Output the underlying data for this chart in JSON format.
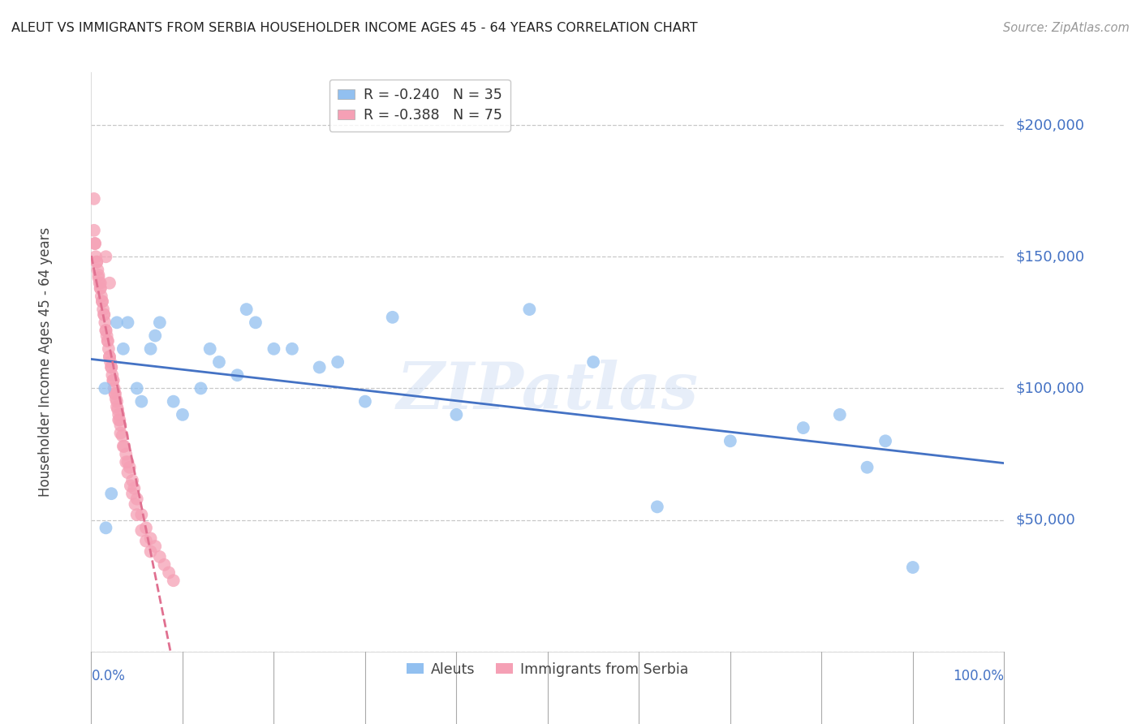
{
  "title": "ALEUT VS IMMIGRANTS FROM SERBIA HOUSEHOLDER INCOME AGES 45 - 64 YEARS CORRELATION CHART",
  "source": "Source: ZipAtlas.com",
  "ylabel": "Householder Income Ages 45 - 64 years",
  "xlim": [
    0.0,
    1.0
  ],
  "ylim": [
    0,
    220000
  ],
  "legend_blue_r": "-0.240",
  "legend_blue_n": "35",
  "legend_pink_r": "-0.388",
  "legend_pink_n": "75",
  "blue_color": "#92c0f0",
  "pink_color": "#f5a0b5",
  "blue_line_color": "#4472c4",
  "pink_line_color": "#e07090",
  "grid_color": "#c8c8c8",
  "background_color": "#ffffff",
  "title_color": "#222222",
  "axis_label_color": "#444444",
  "right_tick_color": "#4472c4",
  "bottom_tick_color": "#4472c4",
  "watermark": "ZIPatlas",
  "aleuts_x": [
    0.016,
    0.022,
    0.028,
    0.035,
    0.04,
    0.05,
    0.055,
    0.065,
    0.07,
    0.075,
    0.09,
    0.1,
    0.12,
    0.13,
    0.14,
    0.16,
    0.17,
    0.18,
    0.2,
    0.22,
    0.25,
    0.27,
    0.3,
    0.33,
    0.4,
    0.48,
    0.55,
    0.62,
    0.7,
    0.78,
    0.82,
    0.85,
    0.87,
    0.9,
    0.015
  ],
  "aleuts_y": [
    47000,
    60000,
    125000,
    115000,
    125000,
    100000,
    95000,
    115000,
    120000,
    125000,
    95000,
    90000,
    100000,
    115000,
    110000,
    105000,
    130000,
    125000,
    115000,
    115000,
    108000,
    110000,
    95000,
    127000,
    90000,
    130000,
    110000,
    55000,
    80000,
    85000,
    90000,
    70000,
    80000,
    32000,
    100000
  ],
  "serbia_x": [
    0.003,
    0.004,
    0.005,
    0.006,
    0.007,
    0.008,
    0.009,
    0.01,
    0.01,
    0.011,
    0.012,
    0.013,
    0.014,
    0.015,
    0.016,
    0.016,
    0.017,
    0.018,
    0.019,
    0.02,
    0.02,
    0.021,
    0.022,
    0.023,
    0.024,
    0.025,
    0.026,
    0.027,
    0.028,
    0.029,
    0.03,
    0.031,
    0.032,
    0.034,
    0.036,
    0.038,
    0.04,
    0.042,
    0.045,
    0.047,
    0.05,
    0.055,
    0.06,
    0.065,
    0.07,
    0.075,
    0.08,
    0.085,
    0.09,
    0.003,
    0.004,
    0.006,
    0.008,
    0.01,
    0.012,
    0.014,
    0.016,
    0.018,
    0.02,
    0.022,
    0.024,
    0.026,
    0.028,
    0.03,
    0.032,
    0.035,
    0.038,
    0.04,
    0.043,
    0.045,
    0.048,
    0.05,
    0.055,
    0.06,
    0.065
  ],
  "serbia_y": [
    172000,
    155000,
    150000,
    148000,
    145000,
    143000,
    140000,
    140000,
    138000,
    135000,
    133000,
    130000,
    128000,
    125000,
    122000,
    150000,
    120000,
    118000,
    115000,
    112000,
    140000,
    110000,
    108000,
    105000,
    103000,
    100000,
    98000,
    96000,
    95000,
    92000,
    90000,
    88000,
    86000,
    82000,
    78000,
    75000,
    72000,
    70000,
    65000,
    62000,
    58000,
    52000,
    47000,
    43000,
    40000,
    36000,
    33000,
    30000,
    27000,
    160000,
    155000,
    148000,
    142000,
    138000,
    133000,
    128000,
    122000,
    118000,
    112000,
    108000,
    103000,
    98000,
    93000,
    88000,
    83000,
    78000,
    72000,
    68000,
    63000,
    60000,
    56000,
    52000,
    46000,
    42000,
    38000
  ]
}
